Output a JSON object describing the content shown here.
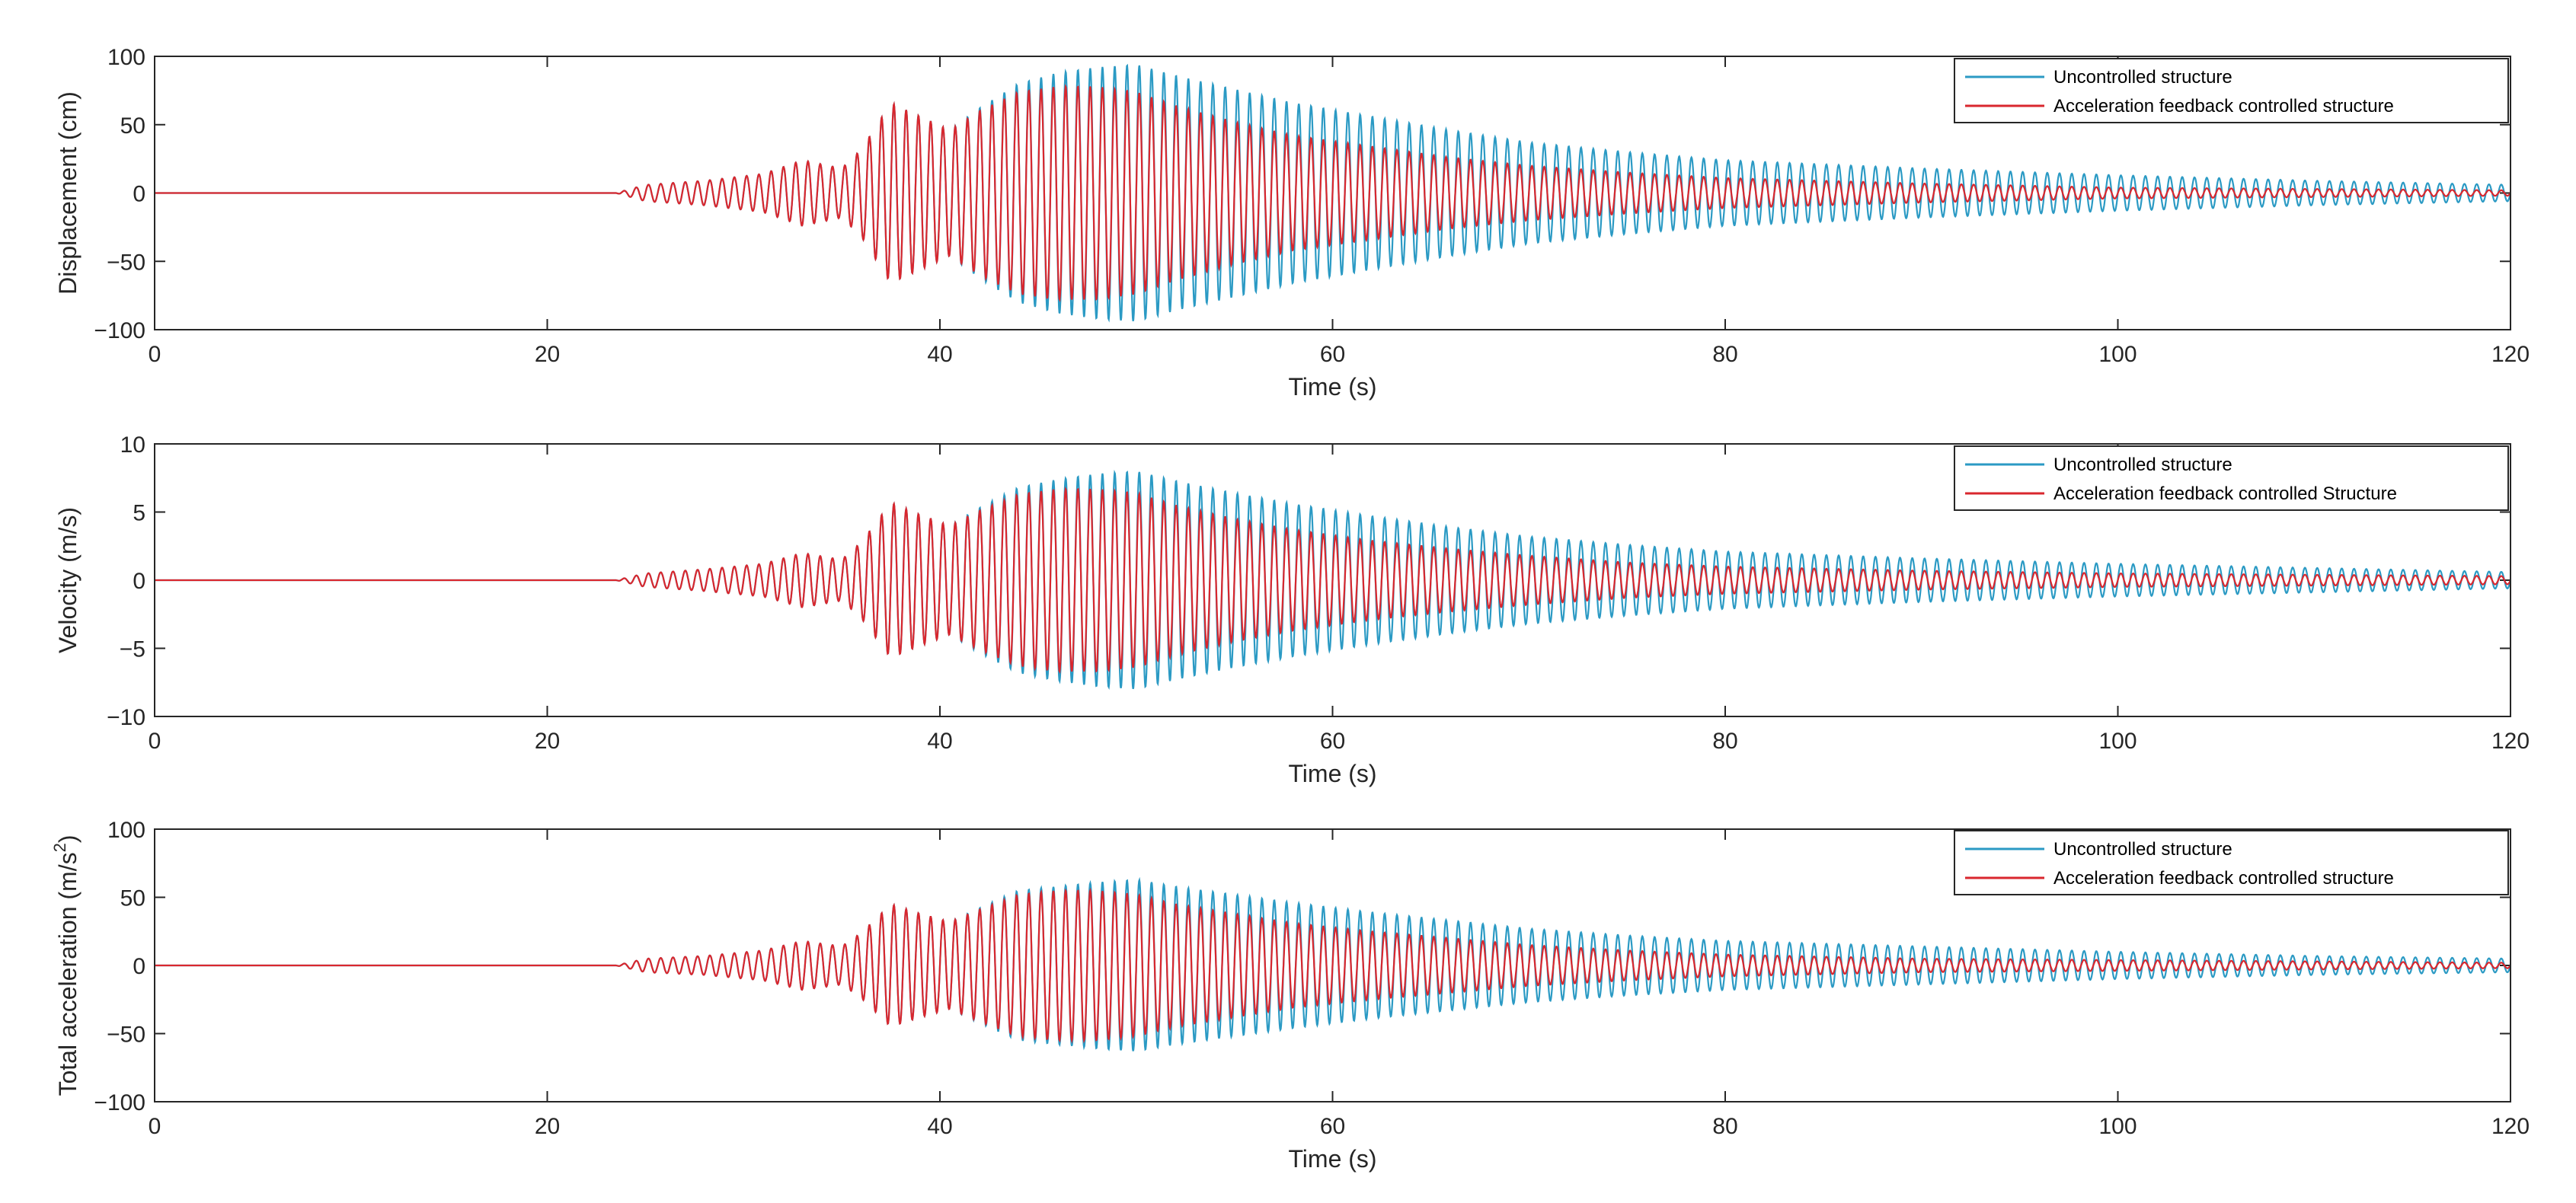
{
  "figure": {
    "name": "structural-response-time-histories"
  },
  "chart_data": [
    {
      "type": "line",
      "xlabel": "Time (s)",
      "ylabel": "Displacement (cm)",
      "xlim": [
        0,
        120
      ],
      "ylim": [
        -100,
        100
      ],
      "xticks": [
        0,
        20,
        40,
        60,
        80,
        100,
        120
      ],
      "yticks": [
        -100,
        -50,
        0,
        50,
        100
      ],
      "ytick_labels": [
        "−100",
        "−50",
        "0",
        "50",
        "100"
      ],
      "xtick_labels": [
        "0",
        "20",
        "40",
        "60",
        "80",
        "100",
        "120"
      ],
      "legend_position": "top-right",
      "series": [
        {
          "name": "Uncontrolled structure",
          "color": "#2b9ac4",
          "envelope": [
            [
              0,
              0
            ],
            [
              23.5,
              0
            ],
            [
              25,
              6
            ],
            [
              28,
              9
            ],
            [
              31,
              14
            ],
            [
              33,
              24
            ],
            [
              35,
              18
            ],
            [
              36,
              32
            ],
            [
              37.5,
              66
            ],
            [
              39,
              56
            ],
            [
              40.5,
              46
            ],
            [
              42,
              62
            ],
            [
              44,
              80
            ],
            [
              46,
              88
            ],
            [
              48,
              92
            ],
            [
              50,
              94
            ],
            [
              52,
              86
            ],
            [
              55,
              76
            ],
            [
              58,
              66
            ],
            [
              62,
              56
            ],
            [
              66,
              46
            ],
            [
              70,
              37
            ],
            [
              75,
              30
            ],
            [
              80,
              24
            ],
            [
              90,
              18
            ],
            [
              100,
              13
            ],
            [
              110,
              9
            ],
            [
              120,
              6
            ]
          ]
        },
        {
          "name": "Acceleration feedback controlled structure",
          "color": "#d9272e",
          "envelope": [
            [
              0,
              0
            ],
            [
              23.5,
              0
            ],
            [
              25,
              6
            ],
            [
              28,
              9
            ],
            [
              31,
              14
            ],
            [
              33,
              24
            ],
            [
              35,
              18
            ],
            [
              36,
              32
            ],
            [
              37.5,
              66
            ],
            [
              39,
              56
            ],
            [
              40.5,
              46
            ],
            [
              42,
              60
            ],
            [
              44,
              74
            ],
            [
              46,
              78
            ],
            [
              48,
              78
            ],
            [
              50,
              74
            ],
            [
              52,
              64
            ],
            [
              55,
              52
            ],
            [
              58,
              42
            ],
            [
              62,
              34
            ],
            [
              66,
              26
            ],
            [
              70,
              20
            ],
            [
              75,
              15
            ],
            [
              80,
              11
            ],
            [
              90,
              7
            ],
            [
              100,
              4
            ],
            [
              110,
              3
            ],
            [
              120,
              2
            ]
          ]
        }
      ]
    },
    {
      "type": "line",
      "xlabel": "Time (s)",
      "ylabel": "Velocity (m/s)",
      "xlim": [
        0,
        120
      ],
      "ylim": [
        -10,
        10
      ],
      "xticks": [
        0,
        20,
        40,
        60,
        80,
        100,
        120
      ],
      "yticks": [
        -10,
        -5,
        0,
        5,
        10
      ],
      "ytick_labels": [
        "−10",
        "−5",
        "0",
        "5",
        "10"
      ],
      "xtick_labels": [
        "0",
        "20",
        "40",
        "60",
        "80",
        "100",
        "120"
      ],
      "legend_position": "top-right",
      "series": [
        {
          "name": "Uncontrolled structure",
          "color": "#2b9ac4",
          "envelope": [
            [
              0,
              0
            ],
            [
              23.5,
              0
            ],
            [
              25,
              0.5
            ],
            [
              28,
              0.8
            ],
            [
              31,
              1.2
            ],
            [
              33,
              2.0
            ],
            [
              35,
              1.5
            ],
            [
              36,
              2.8
            ],
            [
              37.5,
              5.7
            ],
            [
              39,
              4.8
            ],
            [
              40.5,
              4.0
            ],
            [
              42,
              5.3
            ],
            [
              44,
              6.8
            ],
            [
              46,
              7.4
            ],
            [
              48,
              7.8
            ],
            [
              50,
              8.0
            ],
            [
              52,
              7.3
            ],
            [
              55,
              6.4
            ],
            [
              58,
              5.6
            ],
            [
              62,
              4.7
            ],
            [
              66,
              3.9
            ],
            [
              70,
              3.2
            ],
            [
              75,
              2.6
            ],
            [
              80,
              2.1
            ],
            [
              90,
              1.6
            ],
            [
              100,
              1.2
            ],
            [
              110,
              0.9
            ],
            [
              120,
              0.6
            ]
          ]
        },
        {
          "name": "Acceleration feedback controlled Structure",
          "color": "#d9272e",
          "envelope": [
            [
              0,
              0
            ],
            [
              23.5,
              0
            ],
            [
              25,
              0.5
            ],
            [
              28,
              0.8
            ],
            [
              31,
              1.2
            ],
            [
              33,
              2.0
            ],
            [
              35,
              1.5
            ],
            [
              36,
              2.8
            ],
            [
              37.5,
              5.7
            ],
            [
              39,
              4.8
            ],
            [
              40.5,
              4.0
            ],
            [
              42,
              5.1
            ],
            [
              44,
              6.3
            ],
            [
              46,
              6.7
            ],
            [
              48,
              6.7
            ],
            [
              50,
              6.4
            ],
            [
              52,
              5.5
            ],
            [
              55,
              4.5
            ],
            [
              58,
              3.7
            ],
            [
              62,
              2.9
            ],
            [
              66,
              2.3
            ],
            [
              70,
              1.8
            ],
            [
              75,
              1.3
            ],
            [
              80,
              1.0
            ],
            [
              90,
              0.7
            ],
            [
              100,
              0.5
            ],
            [
              110,
              0.4
            ],
            [
              120,
              0.3
            ]
          ]
        }
      ]
    },
    {
      "type": "line",
      "xlabel": "Time (s)",
      "ylabel": "Total acceleration (m/s",
      "ylabel_superscript": "2",
      "ylabel_suffix": ")",
      "xlim": [
        0,
        120
      ],
      "ylim": [
        -100,
        100
      ],
      "xticks": [
        0,
        20,
        40,
        60,
        80,
        100,
        120
      ],
      "yticks": [
        -100,
        -50,
        0,
        50,
        100
      ],
      "ytick_labels": [
        "−100",
        "−50",
        "0",
        "50",
        "100"
      ],
      "xtick_labels": [
        "0",
        "20",
        "40",
        "60",
        "80",
        "100",
        "120"
      ],
      "legend_position": "top-right",
      "series": [
        {
          "name": "Uncontrolled structure",
          "color": "#2b9ac4",
          "envelope": [
            [
              0,
              0
            ],
            [
              23.5,
              0
            ],
            [
              25,
              5
            ],
            [
              28,
              7
            ],
            [
              31,
              11
            ],
            [
              33,
              18
            ],
            [
              35,
              14
            ],
            [
              36,
              24
            ],
            [
              37.5,
              45
            ],
            [
              39,
              38
            ],
            [
              40.5,
              32
            ],
            [
              42,
              42
            ],
            [
              44,
              55
            ],
            [
              46,
              58
            ],
            [
              48,
              61
            ],
            [
              50,
              63
            ],
            [
              52,
              58
            ],
            [
              55,
              52
            ],
            [
              58,
              46
            ],
            [
              62,
              39
            ],
            [
              66,
              33
            ],
            [
              70,
              27
            ],
            [
              75,
              22
            ],
            [
              80,
              18
            ],
            [
              90,
              14
            ],
            [
              100,
              10
            ],
            [
              110,
              7
            ],
            [
              120,
              5
            ]
          ]
        },
        {
          "name": "Acceleration feedback controlled structure",
          "color": "#d9272e",
          "envelope": [
            [
              0,
              0
            ],
            [
              23.5,
              0
            ],
            [
              25,
              5
            ],
            [
              28,
              7
            ],
            [
              31,
              11
            ],
            [
              33,
              18
            ],
            [
              35,
              14
            ],
            [
              36,
              24
            ],
            [
              37.5,
              45
            ],
            [
              39,
              38
            ],
            [
              40.5,
              32
            ],
            [
              42,
              41
            ],
            [
              44,
              52
            ],
            [
              46,
              55
            ],
            [
              48,
              55
            ],
            [
              50,
              52
            ],
            [
              52,
              45
            ],
            [
              55,
              38
            ],
            [
              58,
              31
            ],
            [
              62,
              25
            ],
            [
              66,
              20
            ],
            [
              70,
              15
            ],
            [
              75,
              11
            ],
            [
              80,
              8
            ],
            [
              90,
              5
            ],
            [
              100,
              4
            ],
            [
              110,
              3
            ],
            [
              120,
              2
            ]
          ]
        }
      ]
    }
  ]
}
